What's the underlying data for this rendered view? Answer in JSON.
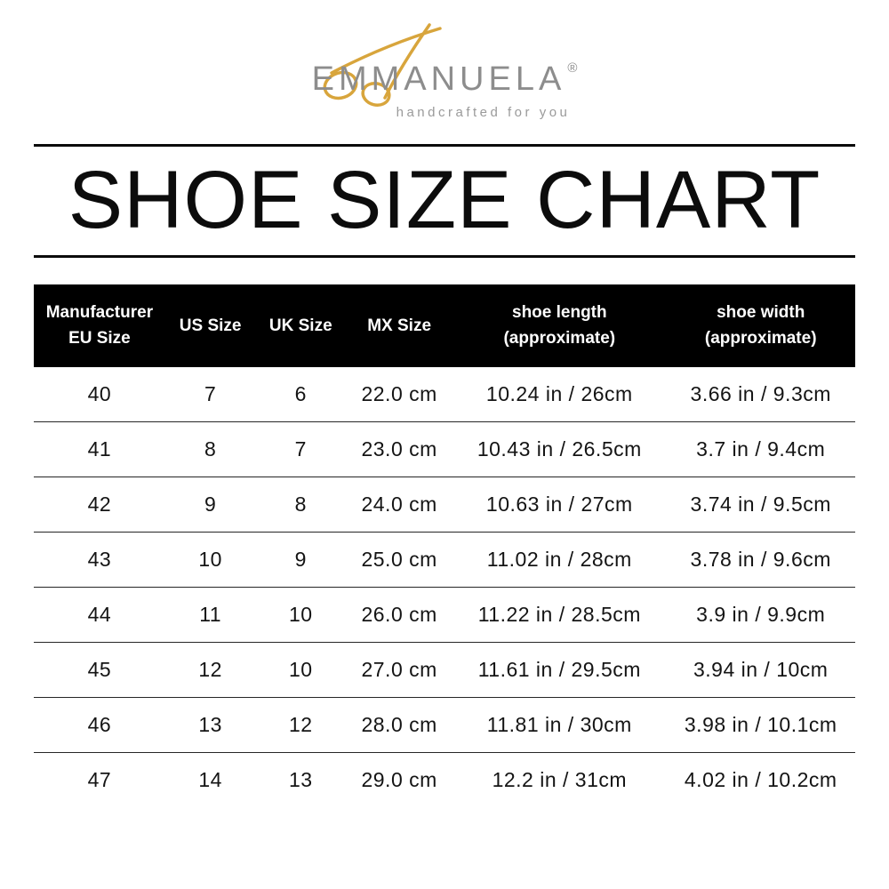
{
  "brand": {
    "name": "EMMANUELA",
    "registered": "®",
    "tagline": "handcrafted for you",
    "logo_color": "#8d8d8d",
    "accent_color": "#D8A53C"
  },
  "chart_data": {
    "type": "table",
    "title": "SHOE SIZE CHART",
    "headers": [
      {
        "line1": "Manufacturer",
        "line2": "EU Size"
      },
      {
        "line1": "US Size"
      },
      {
        "line1": "UK Size"
      },
      {
        "line1": "MX Size"
      },
      {
        "line1": "shoe length",
        "line2": "(approximate)"
      },
      {
        "line1": "shoe width",
        "line2": "(approximate)"
      }
    ],
    "rows": [
      [
        "40",
        "7",
        "6",
        "22.0 cm",
        "10.24 in / 26cm",
        "3.66 in / 9.3cm"
      ],
      [
        "41",
        "8",
        "7",
        "23.0 cm",
        "10.43 in / 26.5cm",
        "3.7 in / 9.4cm"
      ],
      [
        "42",
        "9",
        "8",
        "24.0 cm",
        "10.63 in / 27cm",
        "3.74 in / 9.5cm"
      ],
      [
        "43",
        "10",
        "9",
        "25.0 cm",
        "11.02 in / 28cm",
        "3.78 in / 9.6cm"
      ],
      [
        "44",
        "11",
        "10",
        "26.0 cm",
        "11.22 in / 28.5cm",
        "3.9 in / 9.9cm"
      ],
      [
        "45",
        "12",
        "10",
        "27.0 cm",
        "11.61 in / 29.5cm",
        "3.94 in / 10cm"
      ],
      [
        "46",
        "13",
        "12",
        "28.0 cm",
        "11.81 in / 30cm",
        "3.98 in / 10.1cm"
      ],
      [
        "47",
        "14",
        "13",
        "29.0 cm",
        "12.2 in / 31cm",
        "4.02 in / 10.2cm"
      ]
    ]
  }
}
